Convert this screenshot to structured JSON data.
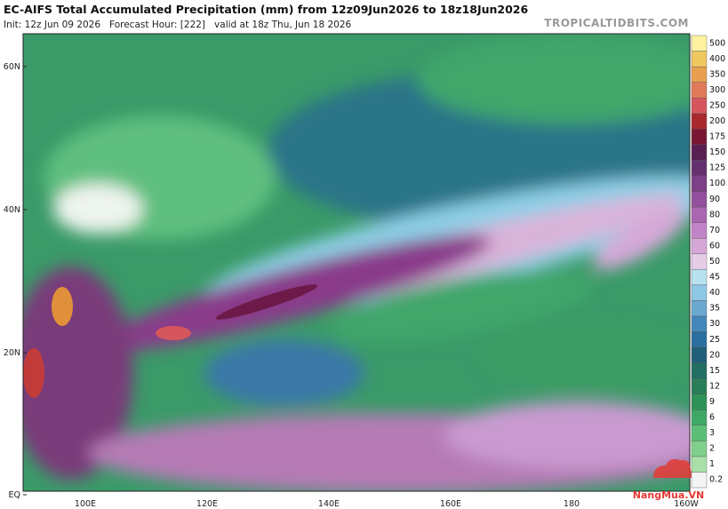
{
  "header": {
    "title": "EC-AIFS Total Accumulated Precipitation (mm) from 12z09Jun2026 to 18z18Jun2026",
    "subtitle": "Init: 12z Jun 09 2026   Forecast Hour: [222]   valid at 18z Thu, Jun 18 2026",
    "site": "TROPICALTIDBITS.COM"
  },
  "map": {
    "lat_labels": [
      "60N",
      "40N",
      "20N",
      "EQ"
    ],
    "lon_labels": [
      "100E",
      "120E",
      "140E",
      "160E",
      "180",
      "160W"
    ],
    "watermark": "NangMua.VN"
  },
  "colorbar": {
    "levels": [
      0.2,
      1,
      2,
      3,
      6,
      9,
      12,
      15,
      20,
      25,
      30,
      35,
      40,
      45,
      50,
      60,
      70,
      80,
      90,
      100,
      125,
      150,
      175,
      200,
      250,
      300,
      350,
      400,
      500
    ],
    "colors": [
      "#f4f4f4",
      "#a8e0a8",
      "#7fd08a",
      "#5cbf78",
      "#3fa866",
      "#2f9258",
      "#2a7f5a",
      "#226e62",
      "#1f5f78",
      "#2b6fa0",
      "#4488bb",
      "#6aa8d0",
      "#8ec8e4",
      "#b8e2f0",
      "#e6cde6",
      "#d6a8d8",
      "#c184c6",
      "#ab66b2",
      "#93509c",
      "#7c3f88",
      "#663070",
      "#5a1f52",
      "#7a1634",
      "#a82a2e",
      "#d6565e",
      "#e07a5a",
      "#e8a050",
      "#f0c860",
      "#fff2a0"
    ]
  }
}
